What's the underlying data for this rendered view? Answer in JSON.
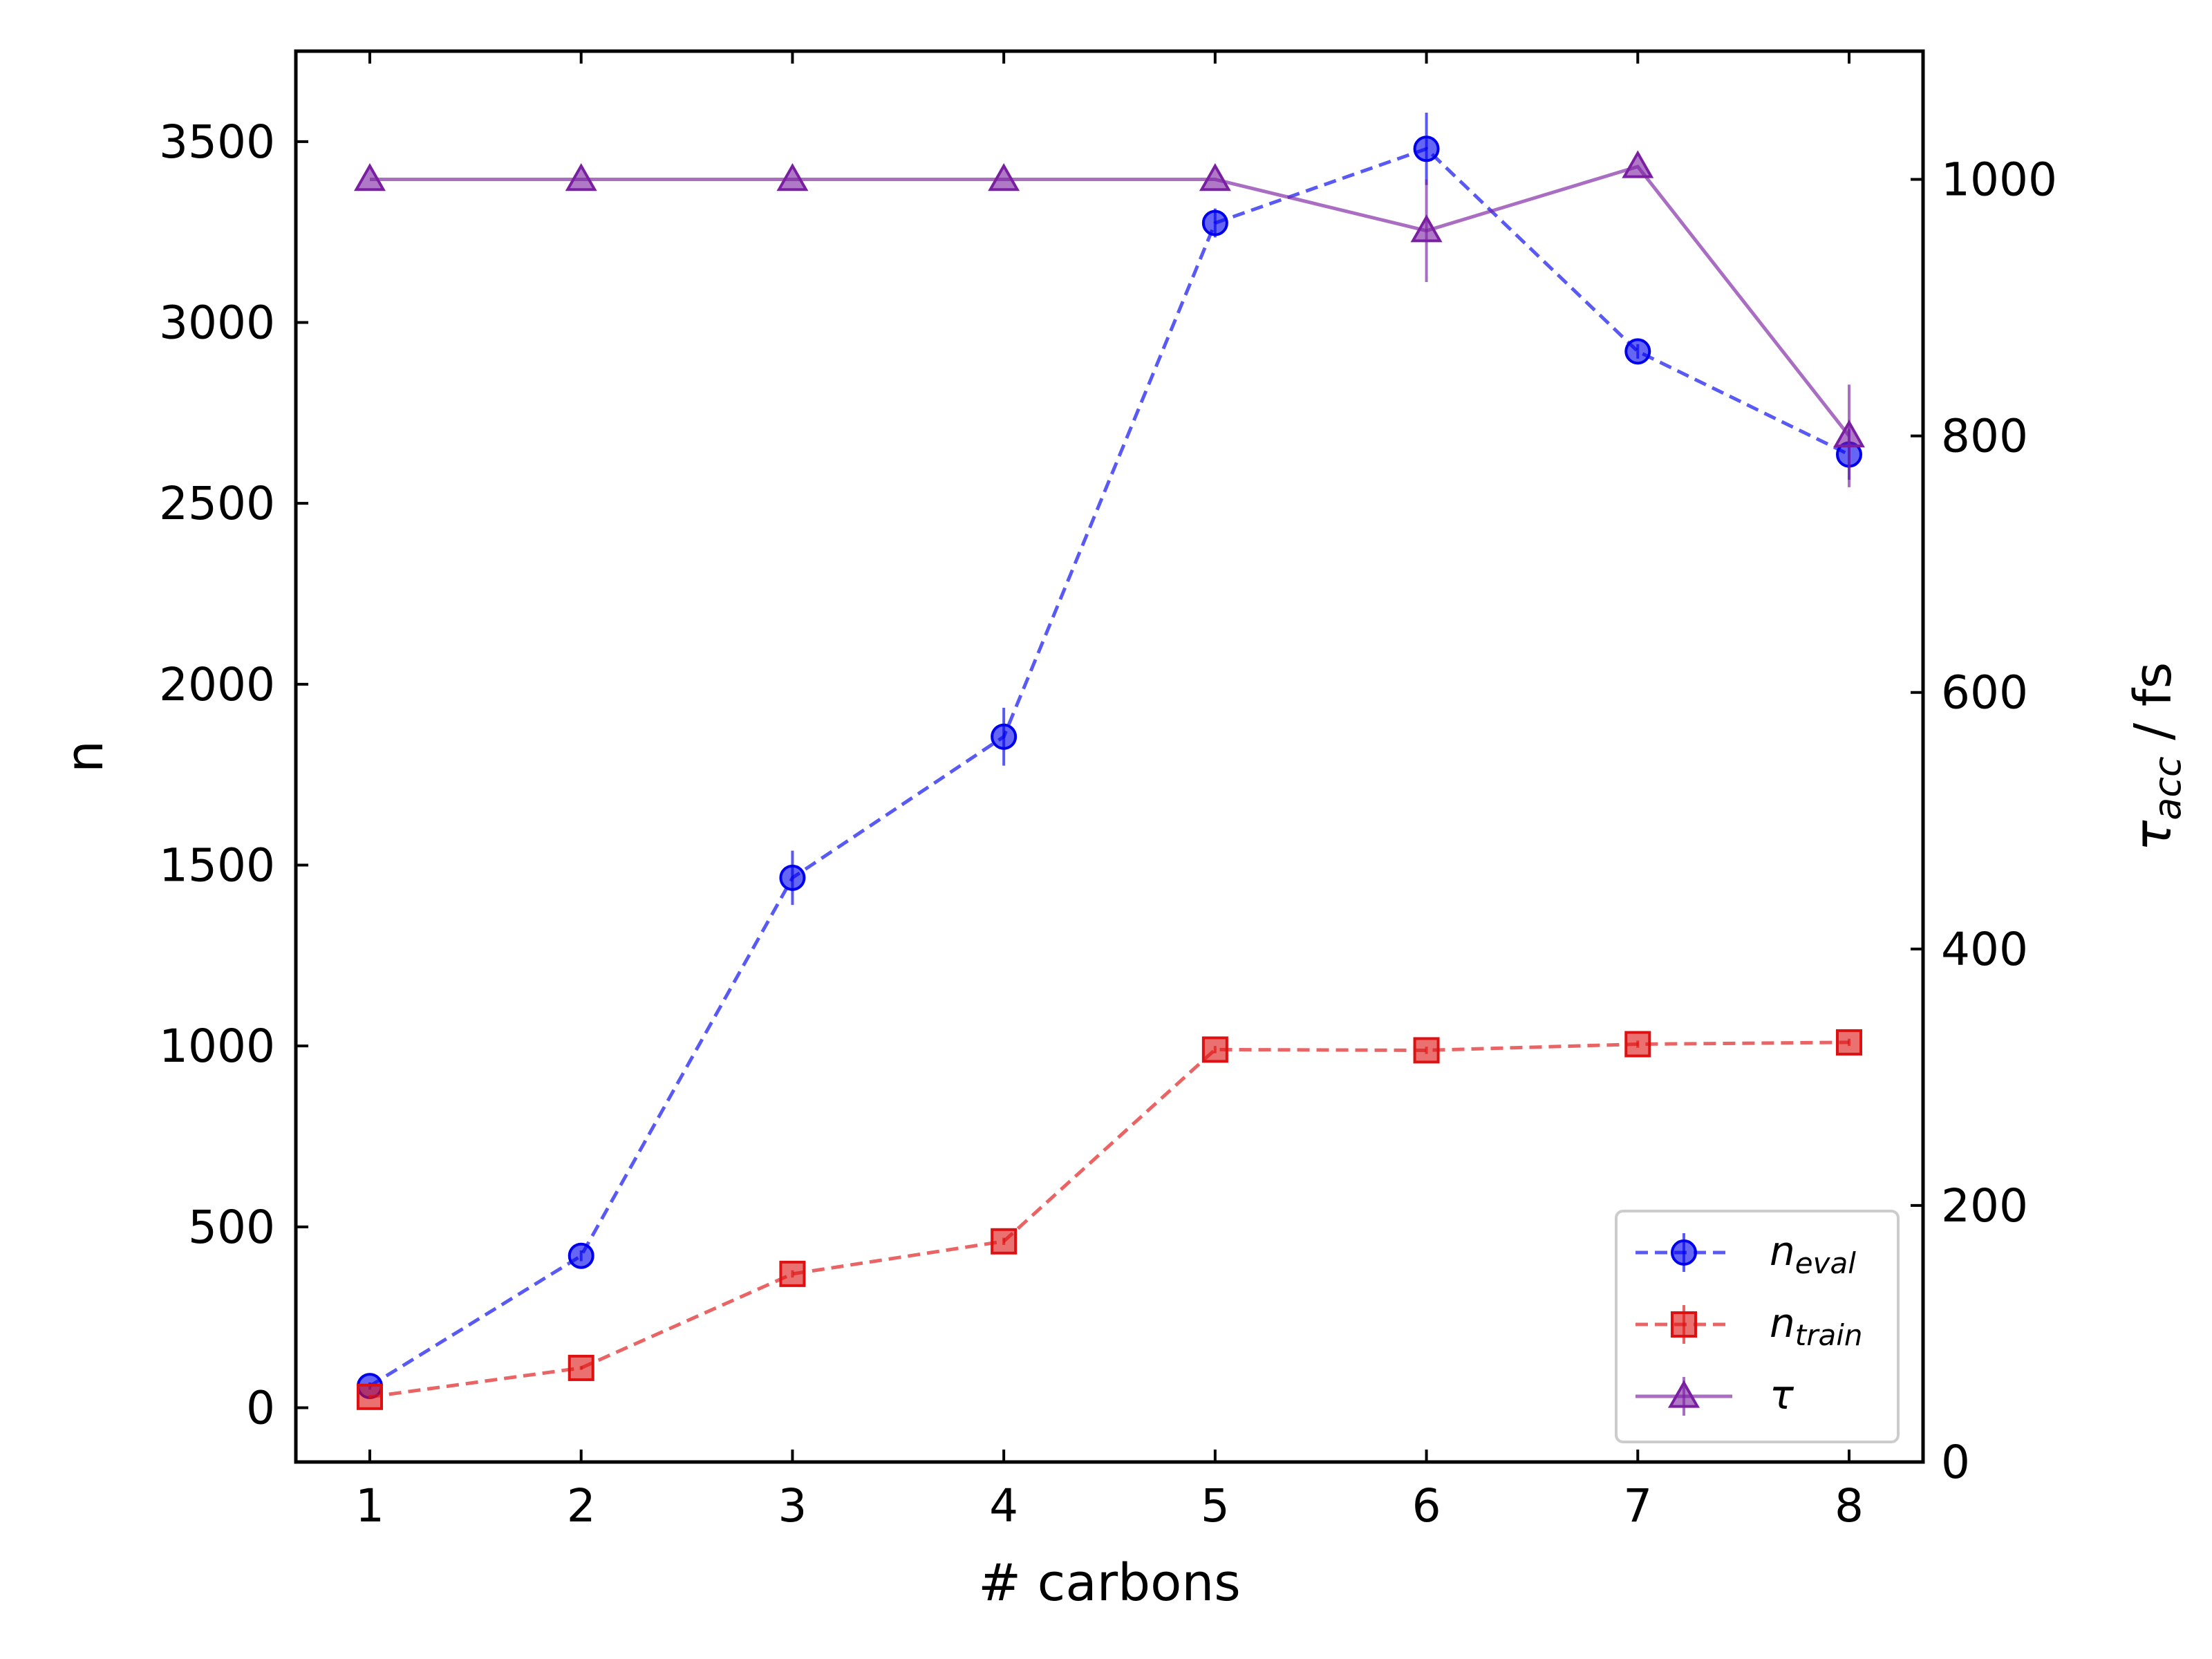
{
  "chart_data": {
    "type": "line",
    "xlabel": "# carbons",
    "ylabel": "n",
    "y2label_main": "τ",
    "y2label_sub": "acc",
    "y2label_rest": " / fs",
    "x": [
      1,
      2,
      3,
      4,
      5,
      6,
      7,
      8
    ],
    "xticks": [
      "1",
      "2",
      "3",
      "4",
      "5",
      "6",
      "7",
      "8"
    ],
    "xlim": [
      0.65,
      8.35
    ],
    "ylim": [
      -150,
      3750
    ],
    "yticks": [
      "0",
      "500",
      "1000",
      "1500",
      "2000",
      "2500",
      "3000",
      "3500"
    ],
    "y2lim": [
      0,
      1100
    ],
    "y2ticks": [
      "0",
      "200",
      "400",
      "600",
      "800",
      "1000"
    ],
    "legend_position": "lower-right",
    "series": [
      {
        "name": "n",
        "name_sub": "eval",
        "axis": "left",
        "color": "#0000ee",
        "linestyle": "dashed",
        "marker": "circle",
        "values": [
          60,
          420,
          1465,
          1855,
          3275,
          3480,
          2920,
          2635
        ],
        "errors": [
          10,
          15,
          75,
          80,
          40,
          100,
          20,
          70
        ]
      },
      {
        "name": "n",
        "name_sub": "train",
        "axis": "left",
        "color": "#dd1111",
        "linestyle": "dashed",
        "marker": "square",
        "values": [
          30,
          110,
          370,
          460,
          990,
          988,
          1005,
          1010
        ],
        "errors": [
          5,
          5,
          10,
          10,
          10,
          10,
          10,
          10
        ]
      },
      {
        "name": "τ",
        "name_sub": "",
        "axis": "right",
        "color": "#7b1fa2",
        "linestyle": "solid",
        "marker": "triangle",
        "values": [
          1000,
          1000,
          1000,
          1000,
          1000,
          960,
          1010,
          800
        ],
        "errors": [
          0,
          0,
          0,
          0,
          0,
          40,
          0,
          40
        ]
      }
    ]
  }
}
